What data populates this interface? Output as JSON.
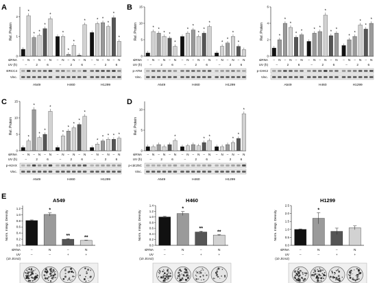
{
  "colors": {
    "black": "#111111",
    "dark_gray": "#555555",
    "mid_gray": "#9a9a9a",
    "light_gray": "#d2d2d2",
    "blot_dark": "#3a3a3a",
    "blot_bg": "#e6e6e6"
  },
  "panel_labels": {
    "a": "A",
    "b": "B",
    "c": "C",
    "d": "D",
    "e": "E"
  },
  "row_labels": {
    "sirna": "siRNA",
    "uv_h": "UV (h)",
    "vinc": "Vinc."
  },
  "cell_lines": [
    "A549",
    "H460",
    "H1299"
  ],
  "chart_data": [
    {
      "id": "A",
      "type": "bar",
      "ylabel": "Rel. Protein",
      "ylim": [
        0,
        2.5
      ],
      "yticks": [
        "0",
        "1",
        "2"
      ],
      "protein": "ERCC4",
      "sirna_row": [
        "–",
        "N",
        "–",
        "N",
        "–",
        "N"
      ],
      "uv_row": [
        "–",
        "",
        "2",
        "",
        "6",
        ""
      ],
      "groups": [
        {
          "cell": "A549",
          "values": [
            0.35,
            2.05,
            0.95,
            1.05,
            1.4,
            1.9
          ],
          "stars": [
            false,
            true,
            true,
            true,
            true,
            true
          ]
        },
        {
          "cell": "H460",
          "values": [
            1.0,
            1.0,
            0.1,
            0.55,
            0.05,
            1.6
          ],
          "stars": [
            false,
            true,
            true,
            true,
            false,
            true
          ]
        },
        {
          "cell": "H1299",
          "values": [
            1.2,
            1.65,
            1.7,
            1.5,
            1.95,
            0.75
          ],
          "stars": [
            false,
            true,
            true,
            true,
            true,
            true
          ]
        }
      ]
    },
    {
      "id": "B",
      "type": "bar",
      "ylabel": "Rel. Protein",
      "ylim": [
        0,
        15
      ],
      "yticks": [
        "0",
        "5",
        "10",
        "15"
      ],
      "protein": "p-ATM",
      "sirna_row": [
        "–",
        "N",
        "–",
        "N",
        "–",
        "N"
      ],
      "uv_row": [
        "–",
        "",
        "2",
        "",
        "6",
        ""
      ],
      "groups": [
        {
          "cell": "A549",
          "values": [
            1,
            7.5,
            7,
            6,
            5.5,
            3
          ],
          "stars": [
            false,
            true,
            true,
            true,
            true,
            true
          ]
        },
        {
          "cell": "H460",
          "values": [
            6,
            7,
            8,
            6,
            7,
            9
          ],
          "stars": [
            false,
            true,
            true,
            true,
            true,
            true
          ]
        },
        {
          "cell": "H1299",
          "values": [
            1,
            3,
            4,
            6,
            3,
            2
          ],
          "stars": [
            false,
            true,
            true,
            true,
            true,
            false
          ]
        }
      ]
    },
    {
      "id": "B2",
      "type": "bar",
      "ylabel": "Rel. Protein",
      "ylim": [
        0,
        6
      ],
      "yticks": [
        "0",
        "2",
        "4",
        "6"
      ],
      "protein": "p-CHK2",
      "sirna_row": [
        "–",
        "N",
        "–",
        "N",
        "–",
        "N"
      ],
      "uv_row": [
        "–",
        "",
        "2",
        "",
        "6",
        ""
      ],
      "groups": [
        {
          "cell": "A549",
          "values": [
            1,
            2,
            4,
            3.5,
            2.3,
            2.6
          ],
          "stars": [
            false,
            true,
            true,
            true,
            true,
            true
          ]
        },
        {
          "cell": "H460",
          "values": [
            1.8,
            2.8,
            3,
            5,
            2.5,
            2.8
          ],
          "stars": [
            false,
            true,
            true,
            true,
            true,
            true
          ]
        },
        {
          "cell": "H1299",
          "values": [
            1.3,
            2,
            2.4,
            3.8,
            3.3,
            4
          ],
          "stars": [
            false,
            true,
            true,
            true,
            true,
            true
          ]
        }
      ]
    },
    {
      "id": "C",
      "type": "bar",
      "ylabel": "Rel. Protein",
      "ylim": [
        0,
        15
      ],
      "yticks": [
        "0",
        "5",
        "10",
        "15"
      ],
      "protein": "p-H2AX",
      "sirna_row": [
        "–",
        "N",
        "–",
        "N",
        "–",
        "N"
      ],
      "uv_row": [
        "–",
        "",
        "2",
        "",
        "6",
        ""
      ],
      "groups": [
        {
          "cell": "A549",
          "values": [
            1,
            3,
            12.5,
            4,
            5,
            12
          ],
          "stars": [
            false,
            true,
            true,
            true,
            true,
            true
          ]
        },
        {
          "cell": "H460",
          "values": [
            1,
            4.5,
            6,
            7,
            8,
            10.5
          ],
          "stars": [
            false,
            true,
            true,
            true,
            true,
            true
          ]
        },
        {
          "cell": "H1299",
          "values": [
            1,
            2,
            3,
            3.5,
            3.5,
            3.8
          ],
          "stars": [
            false,
            true,
            true,
            true,
            true,
            true
          ]
        }
      ]
    },
    {
      "id": "D",
      "type": "bar",
      "ylabel": "Rel. Protein",
      "ylim": [
        0,
        12
      ],
      "yticks": [
        "0",
        "5",
        "10"
      ],
      "protein": "p-cdc25C",
      "sirna_row": [
        "–",
        "N",
        "–",
        "N",
        "–",
        "N"
      ],
      "uv_row": [
        "–",
        "",
        "2",
        "",
        "6",
        ""
      ],
      "groups": [
        {
          "cell": "A549",
          "values": [
            1,
            1,
            1.5,
            1,
            1.5,
            2.5
          ],
          "stars": [
            false,
            false,
            false,
            false,
            false,
            true
          ]
        },
        {
          "cell": "H460",
          "values": [
            1,
            1.2,
            1.5,
            1.2,
            2,
            2.5
          ],
          "stars": [
            false,
            false,
            false,
            false,
            true,
            true
          ]
        },
        {
          "cell": "H1299",
          "values": [
            1,
            1,
            1.5,
            2,
            3,
            9
          ],
          "stars": [
            false,
            false,
            false,
            true,
            true,
            true
          ]
        }
      ]
    },
    {
      "id": "E1",
      "type": "bar",
      "title": "A549",
      "ylabel": "Norm. Integr. Density",
      "ylim": [
        0,
        1.3
      ],
      "yticks": [
        "0.0",
        "0.2",
        "0.4",
        "0.6",
        "0.8",
        "1.0",
        "1.2"
      ],
      "colors": [
        "#111111",
        "#9a9a9a",
        "#555555",
        "#d2d2d2"
      ],
      "values": [
        0.81,
        1.01,
        0.2,
        0.16
      ],
      "errors": [
        0.02,
        0.05,
        0.02,
        0.01
      ],
      "stars": [
        "",
        "*",
        "**",
        "**"
      ],
      "sirna": [
        "–",
        "N",
        "–",
        "N"
      ],
      "uv": [
        "–",
        "–",
        "+",
        "+"
      ]
    },
    {
      "id": "E2",
      "type": "bar",
      "title": "H460",
      "ylabel": "Norm. Integr. Density",
      "ylim": [
        0,
        1.4
      ],
      "yticks": [
        "0.0",
        "0.2",
        "0.4",
        "0.6",
        "0.8",
        "1.0",
        "1.2",
        "1.4"
      ],
      "colors": [
        "#111111",
        "#9a9a9a",
        "#555555",
        "#d2d2d2"
      ],
      "values": [
        1.0,
        1.12,
        0.47,
        0.36
      ],
      "errors": [
        0.02,
        0.07,
        0.03,
        0.02
      ],
      "stars": [
        "",
        "*",
        "**",
        "**"
      ],
      "sirna": [
        "–",
        "N",
        "–",
        "N"
      ],
      "uv": [
        "–",
        "–",
        "+",
        "+"
      ]
    },
    {
      "id": "E3",
      "type": "bar",
      "title": "H1299",
      "ylabel": "Norm. Integr. Density",
      "ylim": [
        0,
        2.5
      ],
      "yticks": [
        "0.0",
        "0.5",
        "1.0",
        "1.5",
        "2.0",
        "2.5"
      ],
      "colors": [
        "#111111",
        "#9a9a9a",
        "#555555",
        "#d2d2d2"
      ],
      "values": [
        1.0,
        1.7,
        0.88,
        1.1
      ],
      "errors": [
        0.03,
        0.35,
        0.2,
        0.12
      ],
      "stars": [
        "",
        "*",
        "",
        ""
      ],
      "sirna": [
        "–",
        "N",
        "–",
        "N"
      ],
      "uv": [
        "–",
        "–",
        "+",
        "+"
      ]
    }
  ],
  "panel_e_labels": {
    "sirna": "siRNA",
    "uv": "UV",
    "dose": "(10 J/cm2)"
  }
}
